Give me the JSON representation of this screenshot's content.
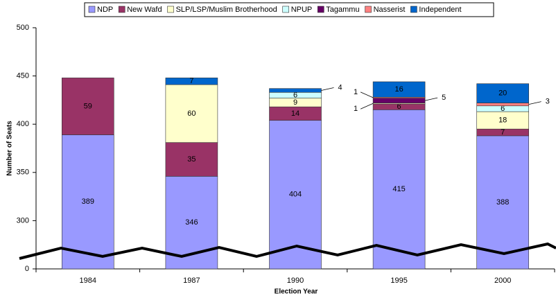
{
  "chart_data": {
    "type": "stacked_bar",
    "ylabel": "Number of Seats",
    "xlabel": "Election Year",
    "categories": [
      "1984",
      "1987",
      "1990",
      "1995",
      "2000"
    ],
    "ylim": [
      0,
      500
    ],
    "yticks": [
      0,
      300,
      350,
      400,
      450,
      500
    ],
    "broken_axis": true,
    "legend": "top",
    "series": [
      {
        "name": "NDP",
        "color": "#9999ff",
        "values": [
          389,
          346,
          404,
          415,
          388
        ]
      },
      {
        "name": "New Wafd",
        "color": "#993366",
        "values": [
          59,
          35,
          14,
          6,
          7
        ]
      },
      {
        "name": "SLP/LSP/Muslim Brotherhood",
        "color": "#ffffcc",
        "values": [
          null,
          60,
          9,
          1,
          18
        ]
      },
      {
        "name": "NPUP",
        "color": "#ccffff",
        "values": [
          null,
          null,
          6,
          null,
          6
        ]
      },
      {
        "name": "Tagammu",
        "color": "#660066",
        "values": [
          null,
          null,
          null,
          5,
          null
        ]
      },
      {
        "name": "Nasserist",
        "color": "#ff8080",
        "values": [
          null,
          null,
          null,
          1,
          3
        ]
      },
      {
        "name": "Independent",
        "color": "#0066cc",
        "values": [
          null,
          7,
          4,
          16,
          20
        ]
      }
    ]
  }
}
